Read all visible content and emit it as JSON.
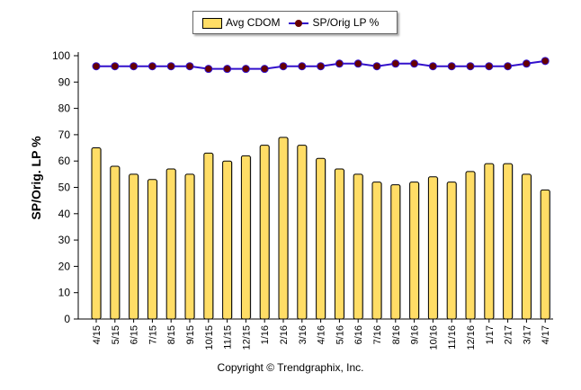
{
  "chart_data": {
    "type": "bar",
    "ylabel": "SP/Orig. LP %",
    "ylim": [
      0,
      100
    ],
    "yticks": [
      0,
      10,
      20,
      30,
      40,
      50,
      60,
      70,
      80,
      90,
      100
    ],
    "categories": [
      "4/15",
      "5/15",
      "6/15",
      "7/15",
      "8/15",
      "9/15",
      "10/15",
      "11/15",
      "12/15",
      "1/16",
      "2/16",
      "3/16",
      "4/16",
      "5/16",
      "6/16",
      "7/16",
      "8/16",
      "9/16",
      "10/16",
      "11/16",
      "12/16",
      "1/17",
      "2/17",
      "3/17",
      "4/17"
    ],
    "series": [
      {
        "name": "Avg CDOM",
        "type": "bar",
        "color": "#ffdd66",
        "values": [
          65,
          58,
          55,
          53,
          57,
          55,
          63,
          60,
          62,
          66,
          69,
          66,
          61,
          57,
          55,
          52,
          51,
          52,
          54,
          52,
          56,
          59,
          59,
          55,
          49
        ]
      },
      {
        "name": "SP/Orig LP %",
        "type": "line",
        "color": "#3311cc",
        "marker_color": "#660000",
        "values": [
          96,
          96,
          96,
          96,
          96,
          96,
          95,
          95,
          95,
          95,
          96,
          96,
          96,
          97,
          97,
          96,
          97,
          97,
          96,
          96,
          96,
          96,
          96,
          97,
          98
        ]
      }
    ],
    "legend_placement": "top-center",
    "grid": false
  },
  "footer": {
    "copyright": "Copyright © Trendgraphix, Inc."
  }
}
